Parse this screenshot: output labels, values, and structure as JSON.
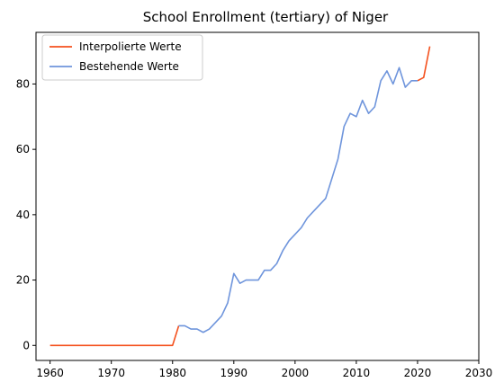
{
  "chart_data": {
    "type": "line",
    "title": "School Enrollment (tertiary) of Niger",
    "xlabel": "",
    "ylabel": "",
    "xlim": [
      1957.7,
      2030
    ],
    "ylim": [
      -4.6,
      95.8
    ],
    "x_ticks": [
      1960,
      1970,
      1980,
      1990,
      2000,
      2010,
      2020,
      2030
    ],
    "y_ticks": [
      0,
      20,
      40,
      60,
      80
    ],
    "grid": false,
    "legend_position": "top-left",
    "series": [
      {
        "name": "Interpolierte Werte",
        "color": "#f4511e",
        "x": [
          1960,
          1961,
          1962,
          1963,
          1964,
          1965,
          1966,
          1967,
          1968,
          1969,
          1970,
          1971,
          1972,
          1973,
          1974,
          1975,
          1976,
          1977,
          1978,
          1979,
          1980,
          1981,
          2020,
          2021,
          2022
        ],
        "y": [
          0,
          0,
          0,
          0,
          0,
          0,
          0,
          0,
          0,
          0,
          0,
          0,
          0,
          0,
          0,
          0,
          0,
          0,
          0,
          0,
          0,
          6,
          81,
          82,
          91.5
        ]
      },
      {
        "name": "Bestehende Werte",
        "color": "#6f95dc",
        "x": [
          1981,
          1982,
          1983,
          1984,
          1985,
          1986,
          1987,
          1988,
          1989,
          1990,
          1991,
          1992,
          1993,
          1994,
          1995,
          1996,
          1997,
          1998,
          1999,
          2000,
          2001,
          2002,
          2003,
          2004,
          2005,
          2006,
          2007,
          2008,
          2009,
          2010,
          2011,
          2012,
          2013,
          2014,
          2015,
          2016,
          2017,
          2018,
          2019,
          2020
        ],
        "y": [
          6,
          6,
          5,
          5,
          4,
          5,
          7,
          9,
          13,
          22,
          19,
          20,
          20,
          20,
          23,
          23,
          25,
          29,
          32,
          34,
          36,
          39,
          41,
          43,
          45,
          51,
          57,
          67,
          71,
          70,
          75,
          71,
          73,
          81,
          84,
          80,
          85,
          79,
          81,
          81
        ]
      }
    ]
  }
}
